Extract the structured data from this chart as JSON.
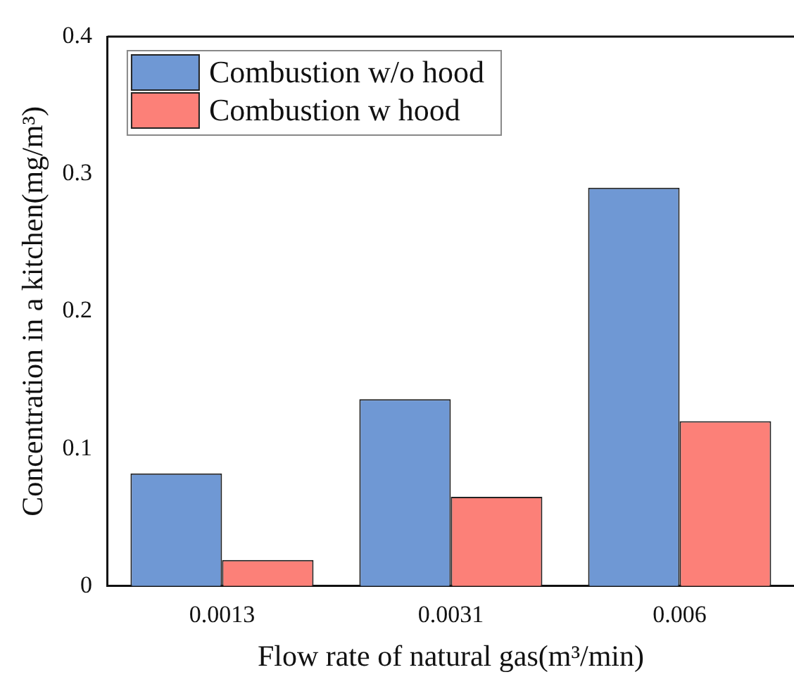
{
  "chart_data": {
    "type": "bar",
    "xlabel": "Flow rate of natural gas(m³/min)",
    "ylabel": "Concentration in a kitchen(mg/m³)",
    "categories": [
      "0.0013",
      "0.0031",
      "0.006"
    ],
    "series": [
      {
        "name": "Combustion w/o hood",
        "color": "#6f98d4",
        "values": [
          0.082,
          0.136,
          0.29
        ]
      },
      {
        "name": "Combustion w hood",
        "color": "#fc8078",
        "values": [
          0.019,
          0.065,
          0.12
        ]
      }
    ],
    "ylim": [
      0,
      0.4
    ],
    "yticks": [
      0,
      0.1,
      0.2,
      0.3,
      0.4
    ],
    "grid": false,
    "legend": "top left"
  }
}
